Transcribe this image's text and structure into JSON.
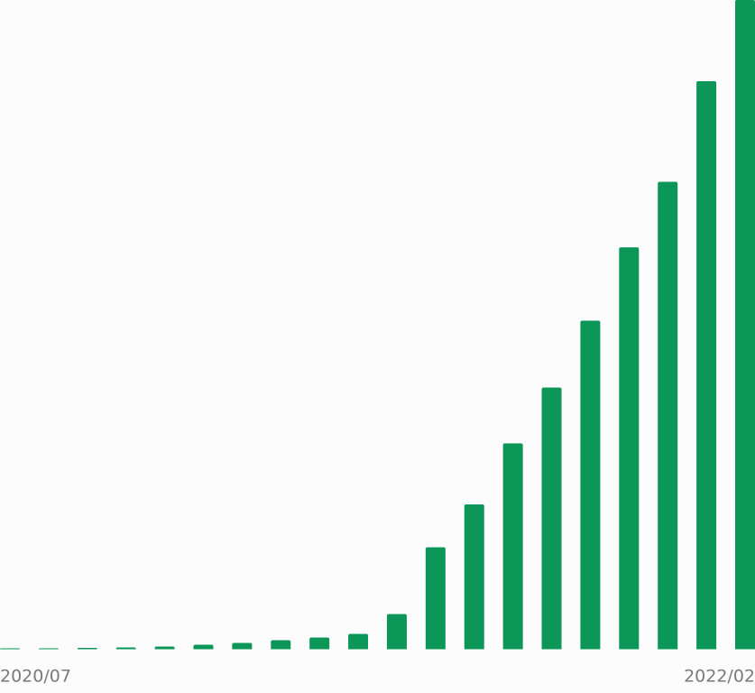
{
  "chart_data": {
    "type": "bar",
    "categories": [
      "2020/07",
      null,
      null,
      null,
      null,
      null,
      null,
      null,
      null,
      null,
      null,
      null,
      null,
      null,
      null,
      null,
      null,
      null,
      null,
      "2022/02"
    ],
    "values": [
      0.14,
      0.14,
      0.21,
      0.28,
      0.42,
      0.7,
      0.97,
      1.39,
      1.81,
      2.36,
      5.42,
      15.7,
      22.3,
      31.7,
      40.3,
      50.6,
      61.9,
      72.0,
      87.5,
      100
    ],
    "color": "#0c9658",
    "ylim": [
      0,
      100
    ]
  }
}
